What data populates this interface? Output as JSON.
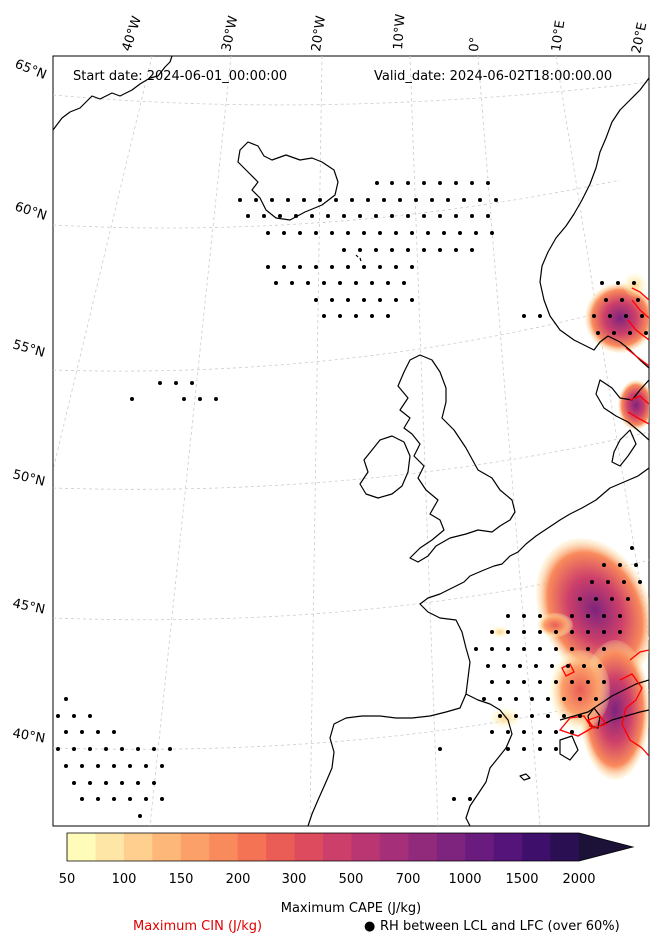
{
  "header": {
    "start_date": "Start date: 2024-06-01_00:00:00",
    "valid_date": "Valid_date: 2024-06-02T18:00:00.00"
  },
  "axes": {
    "lon_labels": [
      "40°W",
      "30°W",
      "20°W",
      "10°W",
      "0°",
      "10°E",
      "20°E"
    ],
    "lat_labels": [
      "65°N",
      "60°N",
      "55°N",
      "50°N",
      "45°N",
      "40°N"
    ]
  },
  "colorbar": {
    "ticks": [
      "50",
      "100",
      "150",
      "200",
      "300",
      "500",
      "700",
      "1000",
      "1500",
      "2000"
    ],
    "label": "Maximum CAPE (J/kg)",
    "colors": [
      "#fffbb8",
      "#fee6a6",
      "#fecf8f",
      "#fdb779",
      "#fca06a",
      "#f98a5b",
      "#f37354",
      "#e95d56",
      "#dd4b5e",
      "#cc3f6a",
      "#b93673",
      "#a52f79",
      "#922a7c",
      "#7e247e",
      "#6a1c7e",
      "#551479",
      "#3e0f6b",
      "#2a0f52",
      "#1c1136"
    ]
  },
  "legend": {
    "cin": "Maximum CIN (J/kg)",
    "rh_marker": "●",
    "rh": "RH between LCL and LFC (over 60%)"
  },
  "colors": {
    "cin_contour": "#ff0000",
    "coast": "#000000",
    "grid": "#cccccc"
  }
}
